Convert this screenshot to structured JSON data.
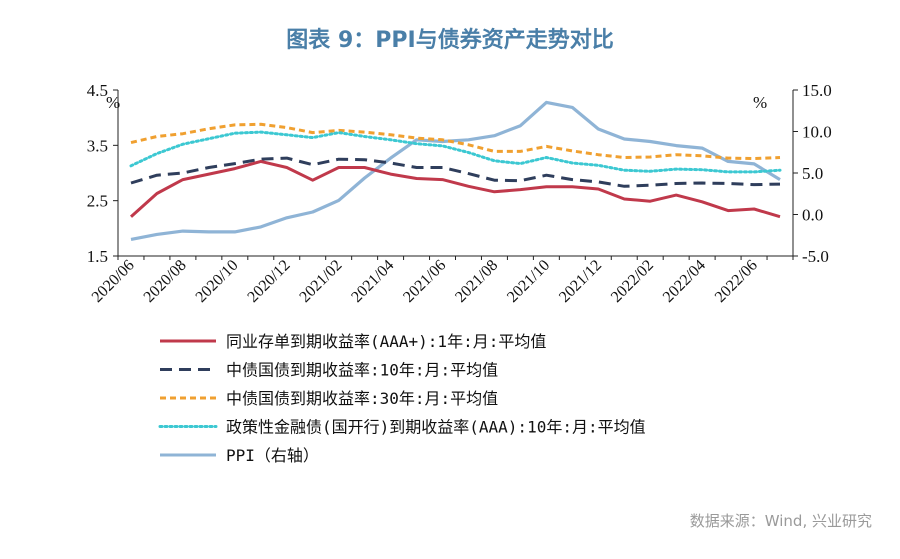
{
  "title": "图表 9：PPI与债券资产走势对比",
  "source": "数据来源：Wind, 兴业研究",
  "colors": {
    "tongye": "#c0394b",
    "gz10": "#2f3e5c",
    "gz30": "#f0a030",
    "zcx": "#3cc8d2",
    "ppi": "#8fb4d6"
  },
  "chart_data": {
    "type": "line",
    "x": [
      "2020/06",
      "2020/07",
      "2020/08",
      "2020/09",
      "2020/10",
      "2020/11",
      "2020/12",
      "2021/01",
      "2021/02",
      "2021/03",
      "2021/04",
      "2021/05",
      "2021/06",
      "2021/07",
      "2021/08",
      "2021/09",
      "2021/10",
      "2021/11",
      "2021/12",
      "2022/01",
      "2022/02",
      "2022/03",
      "2022/04",
      "2022/05",
      "2022/06",
      "2022/07"
    ],
    "x_tick_labels": [
      "2020/06",
      "2020/08",
      "2020/10",
      "2020/12",
      "2021/02",
      "2021/04",
      "2021/06",
      "2021/08",
      "2021/10",
      "2021/12",
      "2022/02",
      "2022/04",
      "2022/06"
    ],
    "y_left": {
      "unit": "%",
      "ylim": [
        1.5,
        4.5
      ],
      "ticks": [
        "4.5",
        "3.5",
        "2.5",
        "1.5"
      ],
      "tick_values": [
        4.5,
        3.5,
        2.5,
        1.5
      ]
    },
    "y_right": {
      "unit": "%",
      "ylim": [
        -5,
        15
      ],
      "ticks": [
        "15.0",
        "10.0",
        "5.0",
        "0.0",
        "-5.0"
      ],
      "tick_values": [
        15,
        10,
        5,
        0,
        -5
      ]
    },
    "grid": false,
    "legend_position": "bottom",
    "series": [
      {
        "key": "tongye",
        "name": "同业存单到期收益率(AAA+):1年:月:平均值",
        "axis": "left",
        "style": "solid",
        "values": [
          2.21,
          2.63,
          2.88,
          2.98,
          3.08,
          3.21,
          3.1,
          2.87,
          3.1,
          3.1,
          2.98,
          2.9,
          2.88,
          2.76,
          2.66,
          2.7,
          2.75,
          2.75,
          2.71,
          2.53,
          2.49,
          2.6,
          2.48,
          2.32,
          2.35,
          2.21
        ]
      },
      {
        "key": "gz10",
        "name": "中债国债到期收益率:10年:月:平均值",
        "axis": "left",
        "style": "dash",
        "values": [
          2.82,
          2.96,
          3.0,
          3.1,
          3.17,
          3.25,
          3.27,
          3.15,
          3.25,
          3.24,
          3.18,
          3.1,
          3.1,
          2.99,
          2.87,
          2.86,
          2.96,
          2.88,
          2.84,
          2.76,
          2.78,
          2.81,
          2.82,
          2.81,
          2.79,
          2.8
        ]
      },
      {
        "key": "gz30",
        "name": "中债国债到期收益率:30年:月:平均值",
        "axis": "left",
        "style": "dash-small",
        "values": [
          3.55,
          3.66,
          3.71,
          3.8,
          3.87,
          3.88,
          3.82,
          3.73,
          3.77,
          3.74,
          3.69,
          3.63,
          3.6,
          3.51,
          3.39,
          3.39,
          3.48,
          3.4,
          3.33,
          3.28,
          3.29,
          3.33,
          3.31,
          3.27,
          3.26,
          3.28
        ]
      },
      {
        "key": "zcx",
        "name": "政策性金融债(国开行)到期收益率(AAA):10年:月:平均值",
        "axis": "left",
        "style": "dot",
        "values": [
          3.13,
          3.35,
          3.52,
          3.62,
          3.72,
          3.74,
          3.69,
          3.64,
          3.73,
          3.66,
          3.6,
          3.53,
          3.49,
          3.37,
          3.22,
          3.17,
          3.28,
          3.18,
          3.14,
          3.05,
          3.03,
          3.07,
          3.06,
          3.02,
          3.02,
          3.05
        ]
      },
      {
        "key": "ppi",
        "name": "PPI（右轴）",
        "axis": "right",
        "style": "solid",
        "values": [
          -3.0,
          -2.4,
          -2.0,
          -2.1,
          -2.1,
          -1.5,
          -0.4,
          0.3,
          1.7,
          4.4,
          6.8,
          9.0,
          8.8,
          9.0,
          9.5,
          10.7,
          13.5,
          12.9,
          10.3,
          9.1,
          8.8,
          8.3,
          8.0,
          6.4,
          6.1,
          4.2
        ]
      }
    ]
  }
}
